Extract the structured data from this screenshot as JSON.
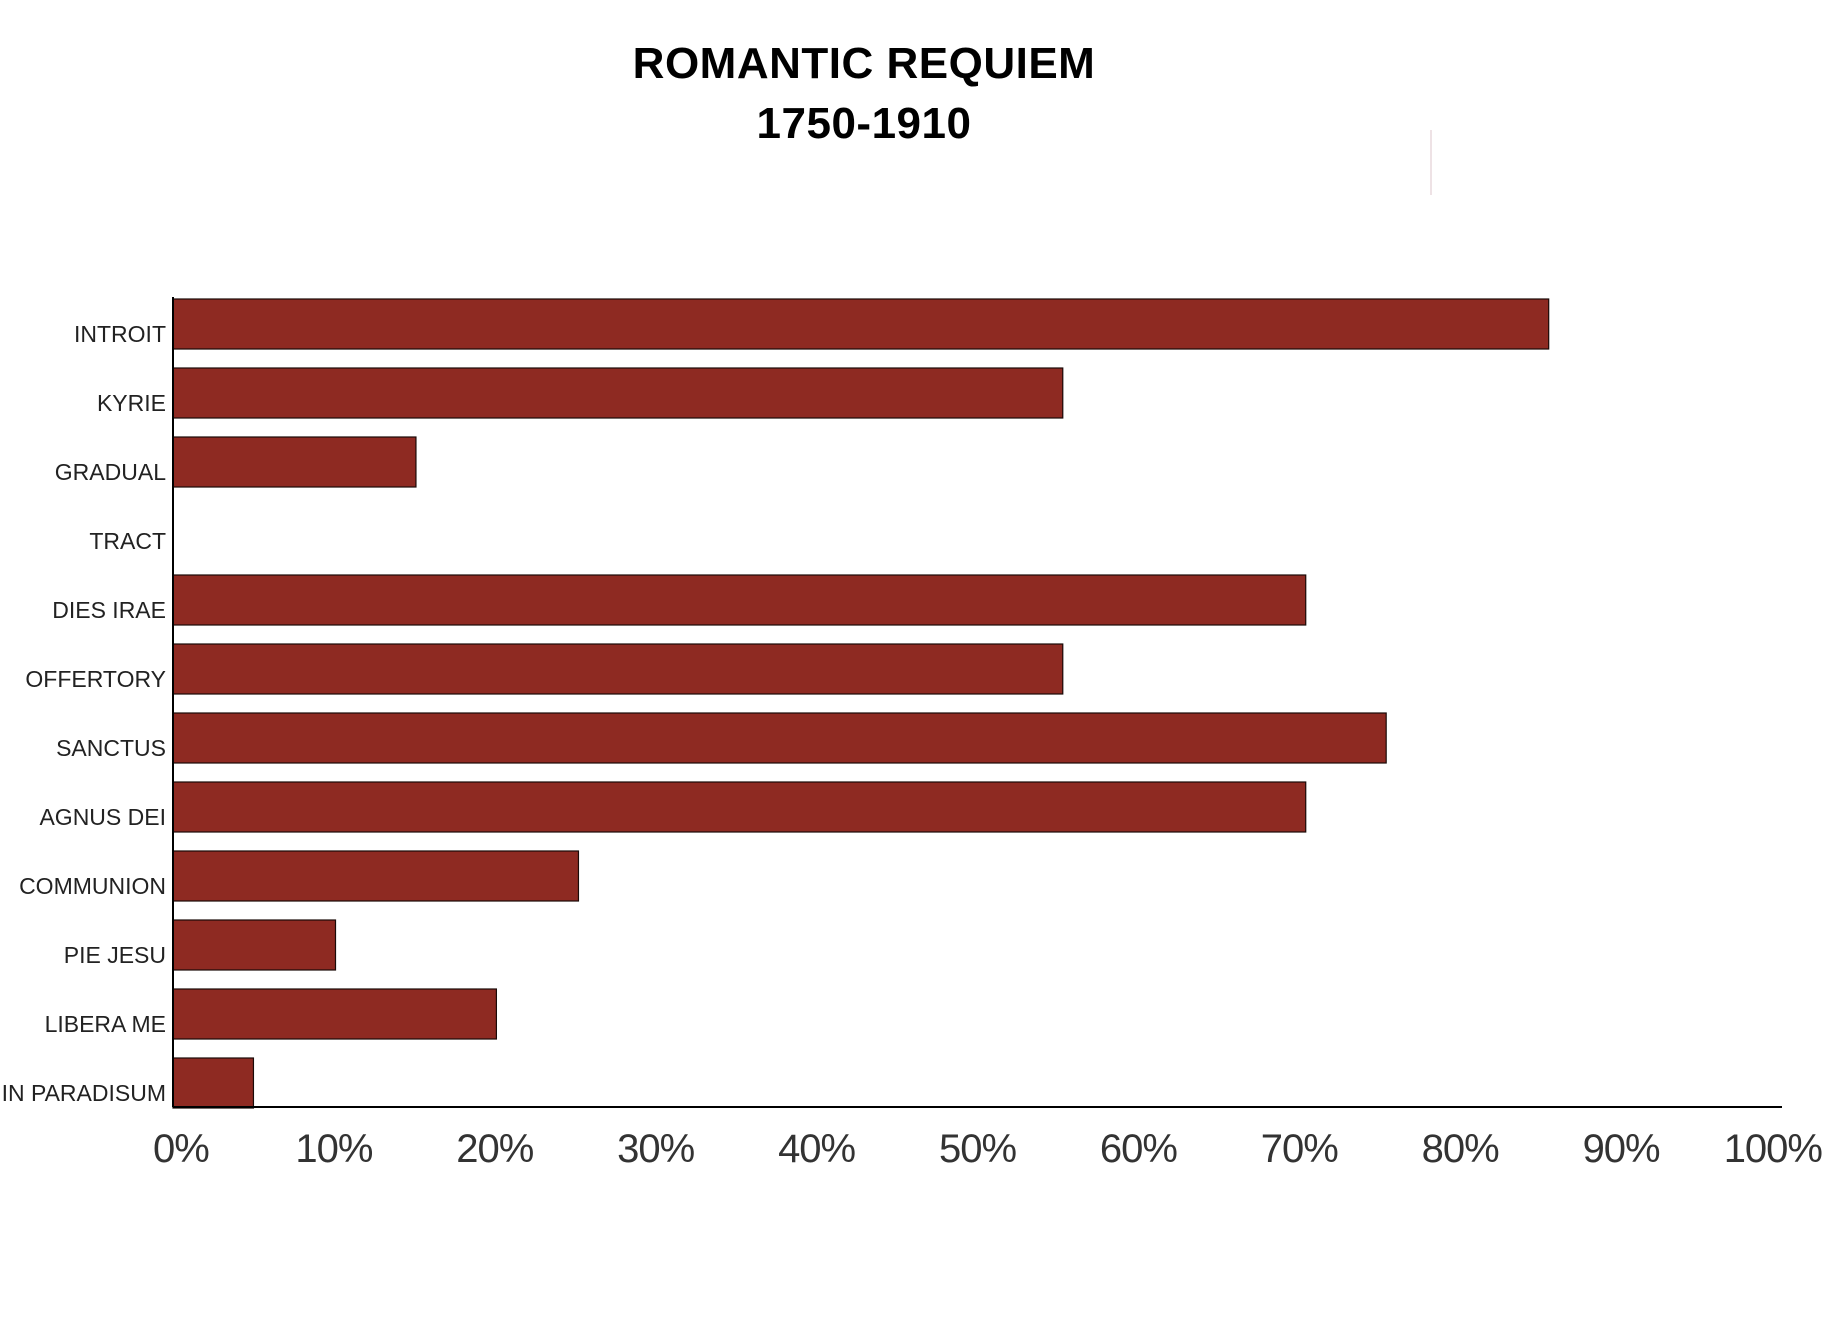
{
  "chart_data": {
    "type": "bar",
    "orientation": "horizontal",
    "title": [
      "ROMANTIC REQUIEM",
      "1750-1910"
    ],
    "categories": [
      "INTROIT",
      "KYRIE",
      "GRADUAL",
      "TRACT",
      "DIES IRAE",
      "OFFERTORY",
      "SANCTUS",
      "AGNUS DEI",
      "COMMUNION",
      "PIE JESU",
      "LIBERA ME",
      "IN PARADISUM"
    ],
    "values": [
      85.5,
      55.3,
      15.1,
      0,
      70.4,
      55.3,
      75.4,
      70.4,
      25.2,
      10.1,
      20.1,
      5.0
    ],
    "xlim": [
      0,
      100
    ],
    "x_ticks": [
      "0%",
      "10%",
      "20%",
      "30%",
      "40%",
      "50%",
      "60%",
      "70%",
      "80%",
      "90%",
      "100%"
    ],
    "xlabel": "",
    "ylabel": "",
    "grid": false,
    "legend": "none",
    "bar_color": "#8e2a22",
    "bar_edge_color": "#1a0a08"
  }
}
